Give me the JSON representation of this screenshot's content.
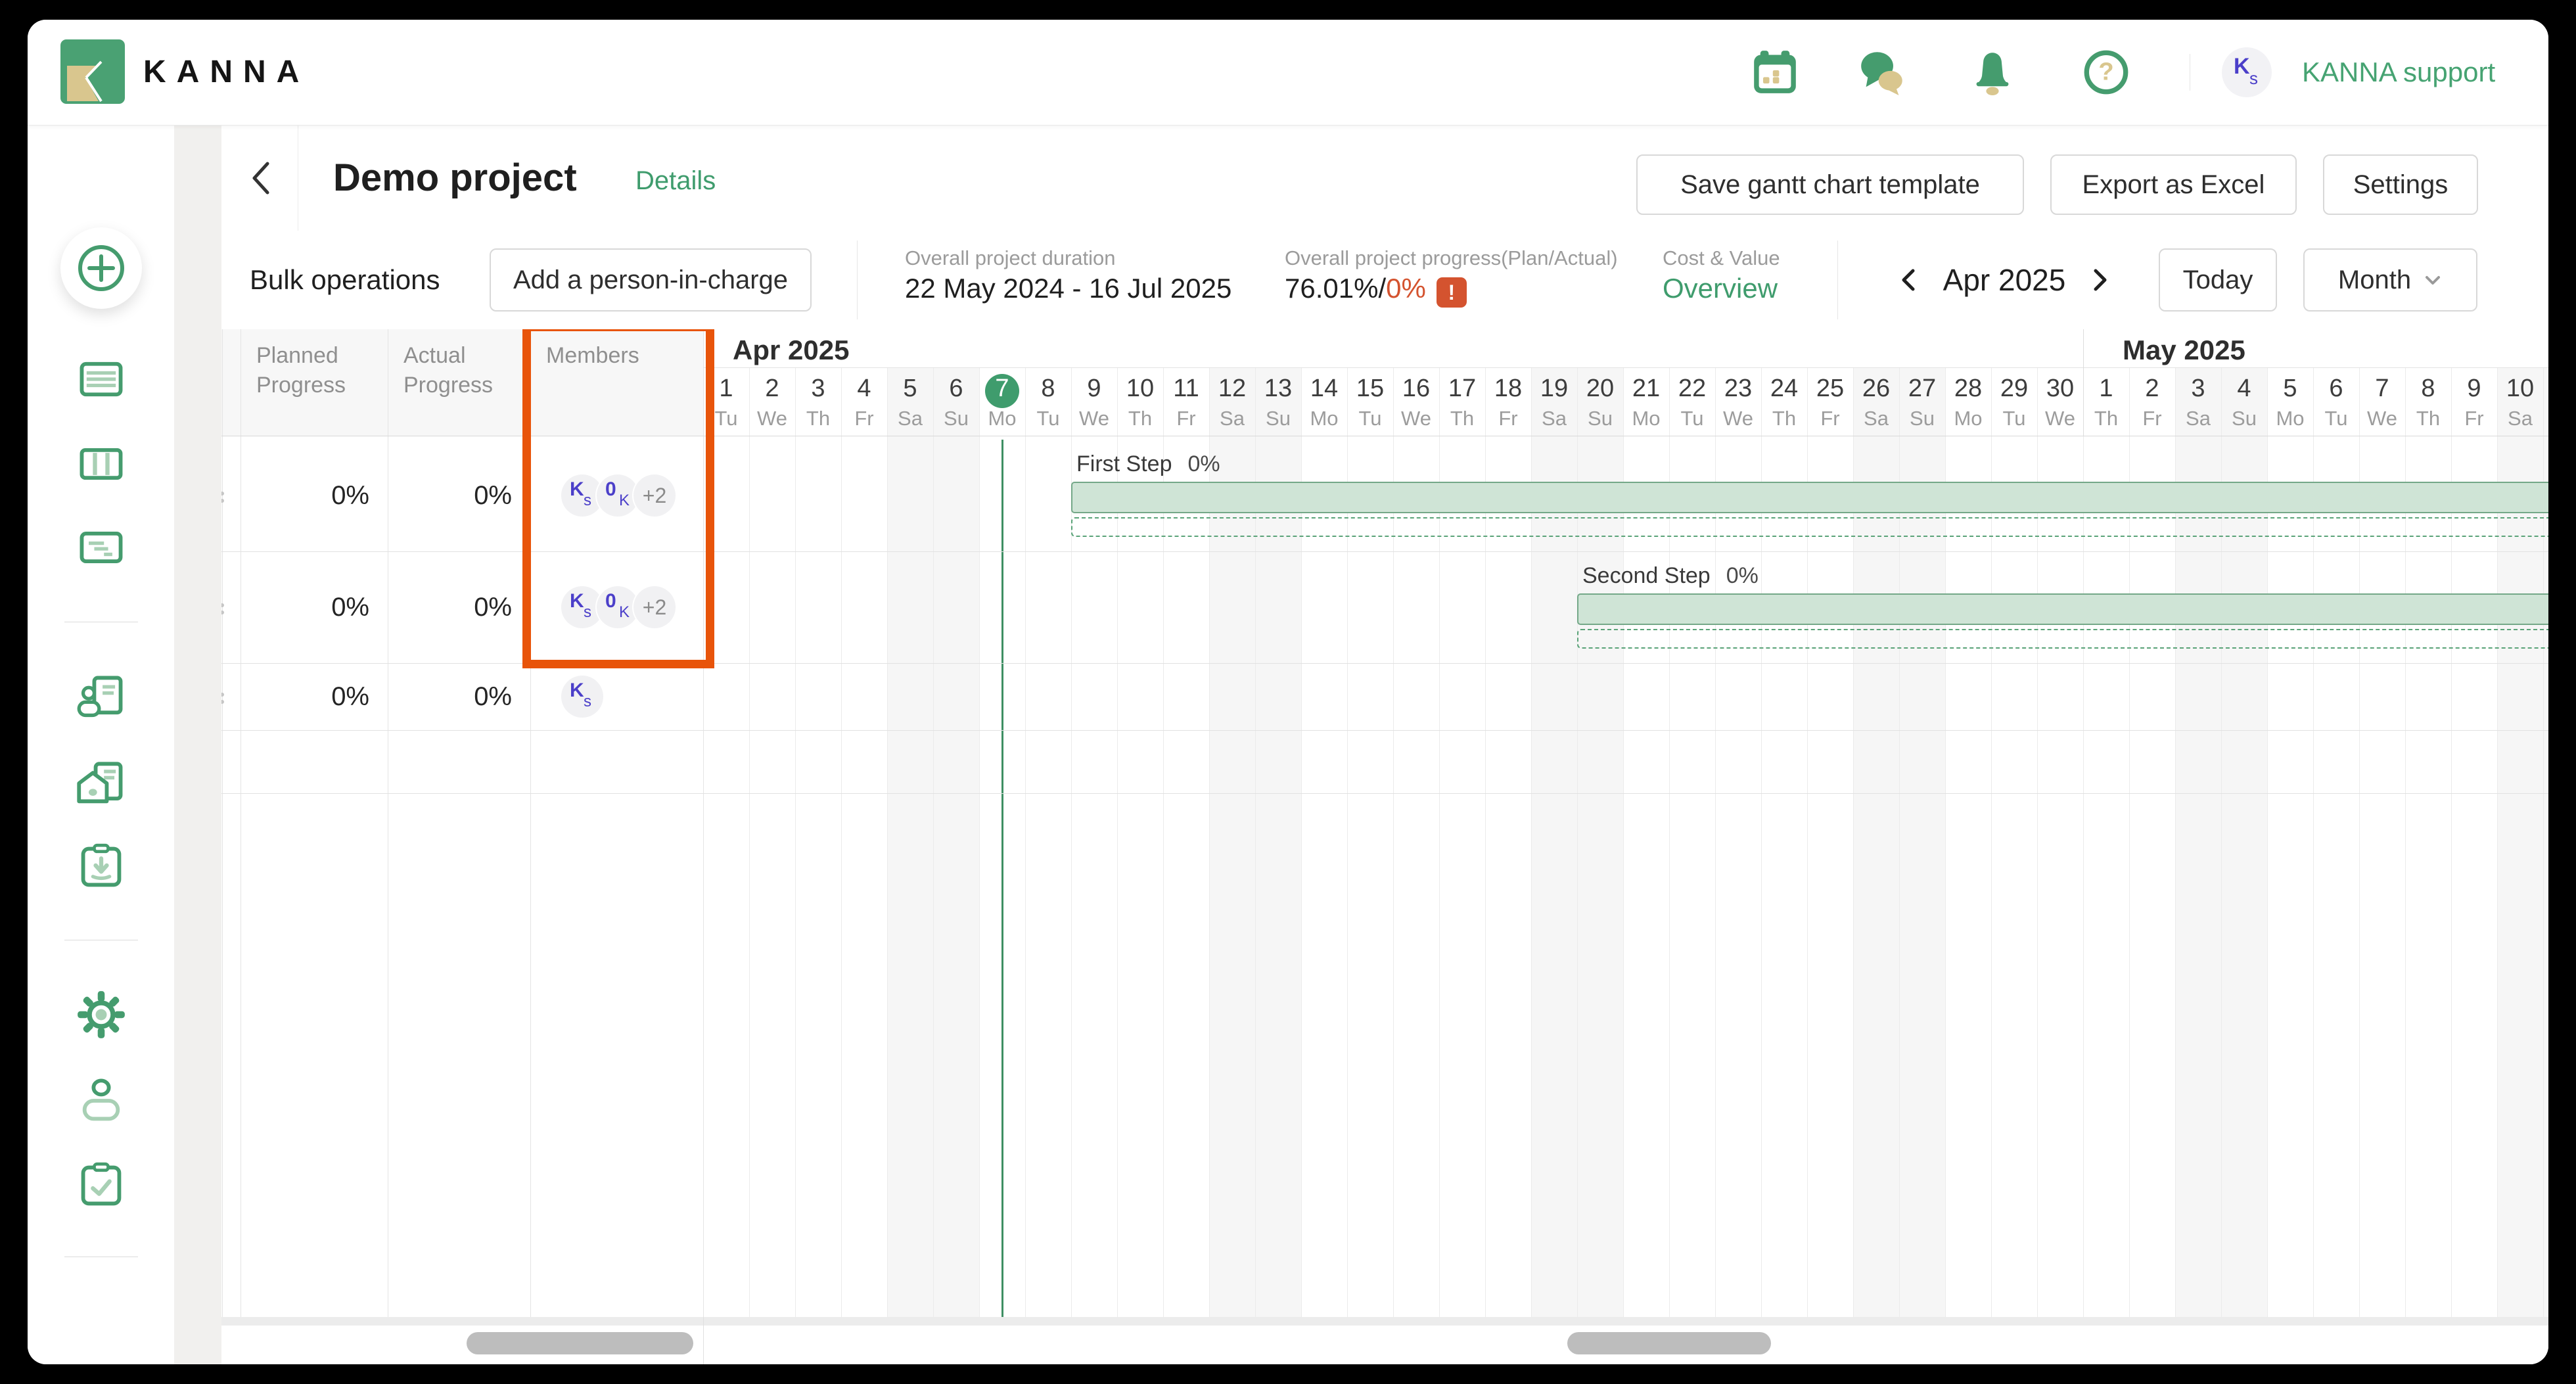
{
  "topbar": {
    "brand": "KANNA",
    "icons": [
      "calendar-icon",
      "chat-icon",
      "notifications-bell-icon",
      "help-icon"
    ],
    "avatar_initials": [
      "K",
      "s"
    ],
    "user_name": "KANNA support"
  },
  "header": {
    "title": "Demo project",
    "details_link": "Details",
    "save_template_button": "Save gantt chart template",
    "export_button": "Export as Excel",
    "settings_button": "Settings"
  },
  "toolbar": {
    "bulk_label": "Bulk operations",
    "add_person_button": "Add a person-in-charge",
    "duration_label": "Overall project duration",
    "duration_value": "22 May 2024 - 16 Jul 2025",
    "progress_label": "Overall project progress(Plan/Actual)",
    "progress_plan": "76.01%",
    "progress_separator": "/",
    "progress_actual": "0%",
    "progress_alert": "!",
    "cost_label": "Cost & Value",
    "cost_link": "Overview",
    "nav": {
      "month_label": "Apr 2025",
      "today_button": "Today",
      "view_select": "Month"
    }
  },
  "table": {
    "columns": [
      "Planned Progress",
      "Actual Progress",
      "Members"
    ],
    "rows": [
      {
        "planned": "0%",
        "actual": "0%",
        "members": [
          {
            "initials": [
              "K",
              "s"
            ]
          },
          {
            "initials": [
              "0",
              "K"
            ]
          },
          {
            "overflow": "+2"
          }
        ],
        "highlighted": true
      },
      {
        "planned": "0%",
        "actual": "0%",
        "members": [
          {
            "initials": [
              "K",
              "s"
            ]
          },
          {
            "initials": [
              "0",
              "K"
            ]
          },
          {
            "overflow": "+2"
          }
        ],
        "highlighted": true
      },
      {
        "planned": "0%",
        "actual": "0%",
        "members": [
          {
            "initials": [
              "K",
              "s"
            ]
          }
        ]
      },
      {
        "planned": "",
        "actual": "",
        "members": []
      }
    ]
  },
  "gantt": {
    "months": [
      {
        "label": "Apr 2025",
        "days": 30
      },
      {
        "label": "May 2025",
        "days": 11
      }
    ],
    "weekdays": [
      "Mo",
      "Tu",
      "We",
      "Th",
      "Fr",
      "Sa",
      "Su"
    ],
    "start_weekday": "Tu",
    "today_day_index": 6,
    "tasks": [
      {
        "name": "First Step",
        "progress": "0%",
        "row": 0,
        "start_day_index": 8
      },
      {
        "name": "Second Step",
        "progress": "0%",
        "row": 1,
        "start_day_index": 19
      }
    ]
  },
  "colors": {
    "brand_green": "#459c6e",
    "light_green": "#a8d0b4",
    "tan": "#d9c68e",
    "bar_fill": "#cfe4d6",
    "bar_border": "#74a888",
    "bar_dashed": "#5aa378",
    "today_line": "#3e8f63",
    "today_circle": "#3f9c6d",
    "orange_highlight": "#e8540a",
    "alert_red": "#d4532f",
    "avatar_purple": "#4b3fc9",
    "weekend_bg": "#f6f6f6"
  }
}
